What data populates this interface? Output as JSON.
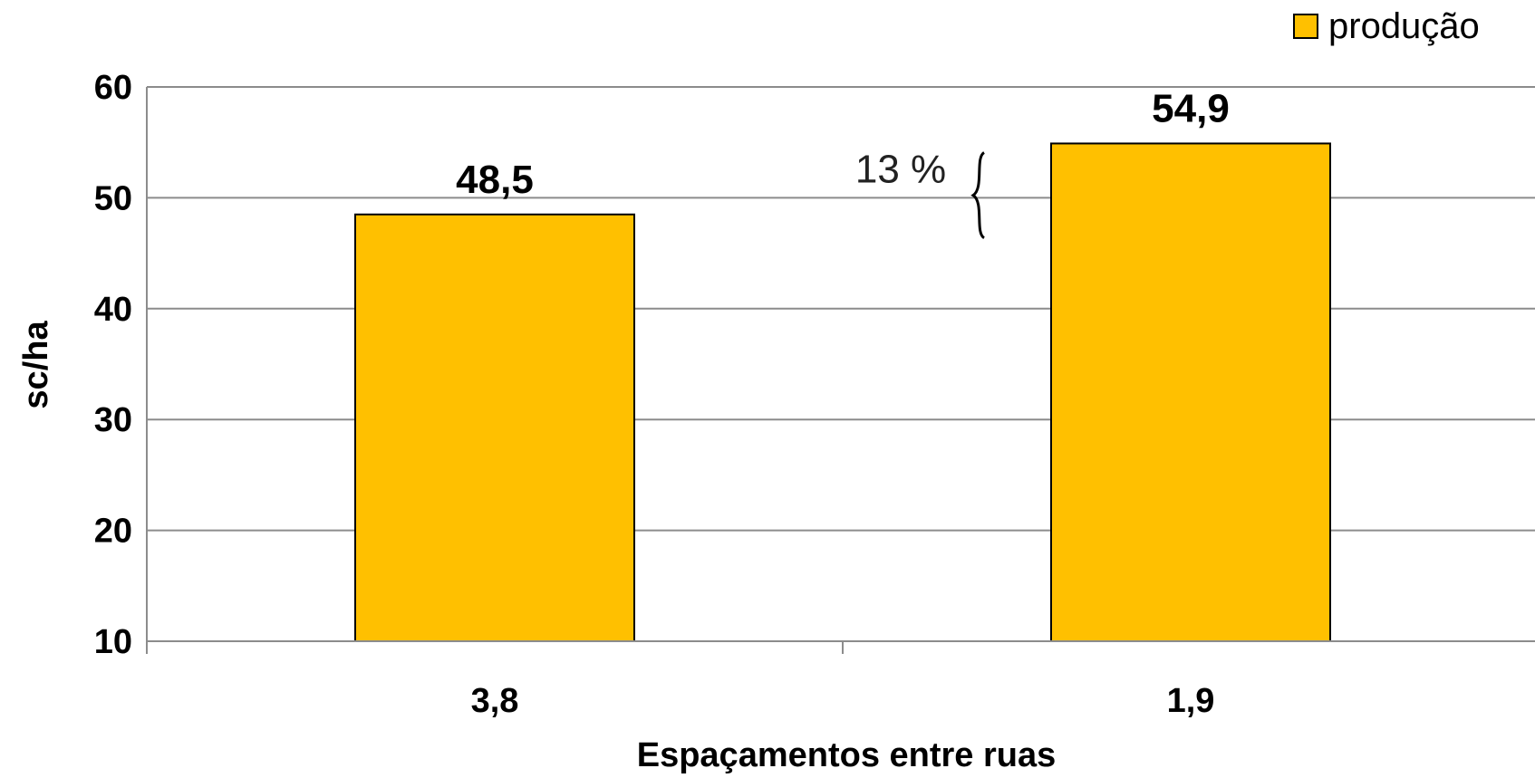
{
  "chart_data": {
    "type": "bar",
    "categories": [
      "3,8",
      "1,9"
    ],
    "series": [
      {
        "name": "produção",
        "values": [
          48.5,
          54.9
        ],
        "value_labels": [
          "48,5",
          "54,9"
        ],
        "color": "#FFC000"
      }
    ],
    "xlabel": "Espaçamentos entre ruas",
    "ylabel": "sc/ha",
    "ylim": [
      10,
      60
    ],
    "yticks": [
      10,
      20,
      30,
      40,
      50,
      60
    ],
    "grid": true,
    "legend_position": "top-right",
    "annotation": {
      "text": "13 %",
      "between_values": [
        48.5,
        54.9
      ]
    }
  }
}
